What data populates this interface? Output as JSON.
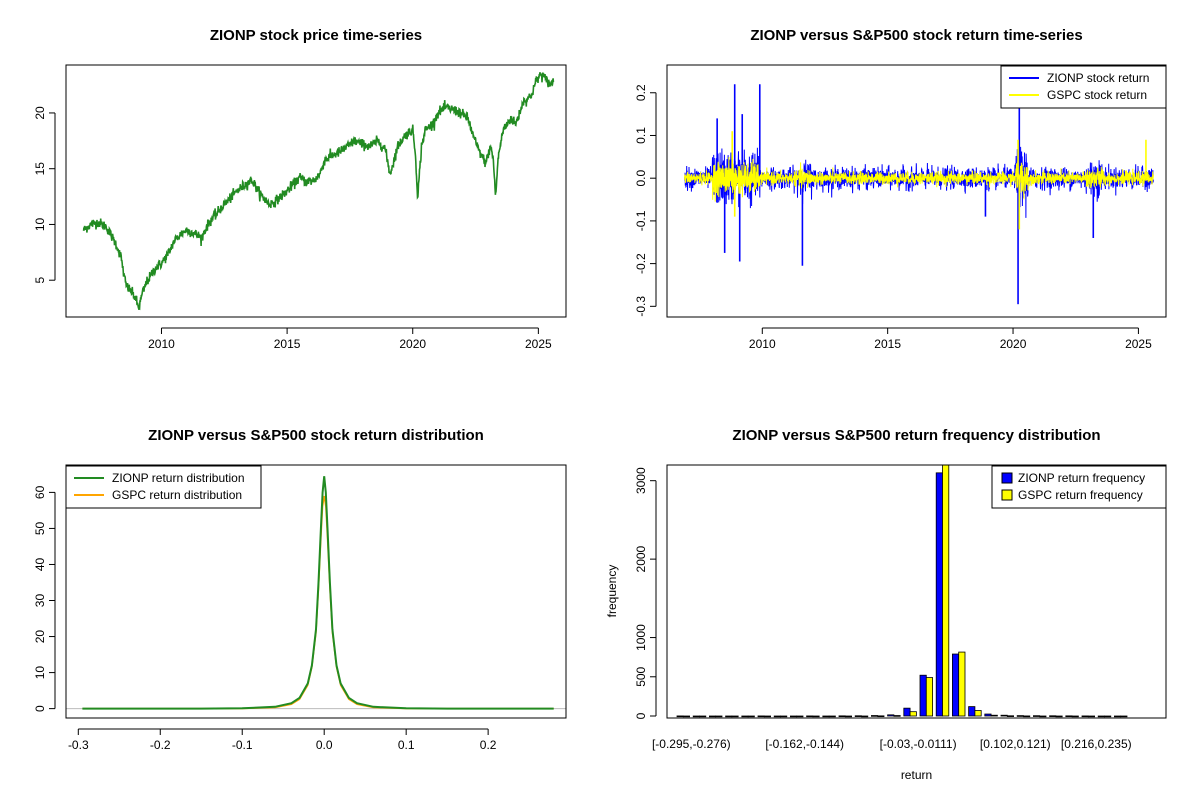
{
  "chart_data": [
    {
      "id": "price",
      "type": "line",
      "title": "ZIONP stock price time-series",
      "xlabel": "",
      "ylabel": "",
      "xlim": [
        2006.2,
        2026.1
      ],
      "ylim": [
        1.7,
        24.3
      ],
      "xticks": [
        2010,
        2015,
        2020,
        2025
      ],
      "yticks": [
        5,
        10,
        15,
        20
      ],
      "series": [
        {
          "color": "#228B22",
          "x": [
            2006.9,
            2007.2,
            2007.5,
            2007.8,
            2008.0,
            2008.2,
            2008.4,
            2008.5,
            2008.6,
            2008.8,
            2009.0,
            2009.1,
            2009.2,
            2009.4,
            2009.6,
            2009.8,
            2010.0,
            2010.3,
            2010.5,
            2010.8,
            2011.0,
            2011.3,
            2011.6,
            2011.8,
            2012.0,
            2012.2,
            2012.5,
            2012.8,
            2013.0,
            2013.3,
            2013.6,
            2013.8,
            2014.0,
            2014.3,
            2014.6,
            2014.9,
            2015.2,
            2015.5,
            2015.8,
            2016.1,
            2016.3,
            2016.5,
            2016.8,
            2017.1,
            2017.4,
            2017.7,
            2018.0,
            2018.3,
            2018.6,
            2018.9,
            2019.1,
            2019.4,
            2019.7,
            2020.0,
            2020.1,
            2020.2,
            2020.25,
            2020.35,
            2020.5,
            2020.8,
            2021.0,
            2021.3,
            2021.6,
            2021.9,
            2022.2,
            2022.4,
            2022.6,
            2022.9,
            2023.1,
            2023.2,
            2023.3,
            2023.4,
            2023.6,
            2023.9,
            2024.1,
            2024.4,
            2024.7,
            2024.9,
            2025.1,
            2025.3,
            2025.5,
            2025.6
          ],
          "y": [
            9.5,
            10.0,
            10.2,
            9.8,
            9.0,
            8.2,
            7.0,
            5.5,
            4.5,
            4.0,
            3.2,
            2.5,
            3.5,
            4.8,
            5.5,
            6.2,
            6.5,
            7.5,
            8.5,
            9.2,
            9.5,
            9.2,
            8.8,
            9.8,
            10.5,
            11.0,
            11.8,
            12.5,
            13.0,
            13.5,
            14.0,
            13.2,
            12.5,
            11.8,
            12.2,
            12.8,
            13.5,
            14.2,
            13.8,
            14.0,
            14.5,
            15.8,
            16.2,
            16.5,
            17.0,
            17.5,
            17.2,
            17.0,
            17.5,
            16.8,
            14.5,
            17.0,
            18.0,
            18.5,
            16.5,
            12.5,
            14.0,
            17.0,
            18.5,
            19.0,
            20.0,
            20.5,
            20.3,
            20.0,
            19.5,
            18.0,
            16.8,
            15.5,
            17.0,
            16.0,
            12.5,
            16.0,
            18.5,
            19.5,
            19.0,
            21.0,
            21.5,
            22.8,
            23.5,
            23.0,
            22.5,
            23.0
          ]
        }
      ]
    },
    {
      "id": "returns",
      "type": "line",
      "title": "ZIONP versus S&P500 stock return time-series",
      "xlabel": "",
      "ylabel": "",
      "xlim": [
        2006.2,
        2026.1
      ],
      "ylim": [
        -0.325,
        0.265
      ],
      "xticks": [
        2010,
        2015,
        2020,
        2025
      ],
      "yticks": [
        -0.3,
        -0.2,
        -0.1,
        0.0,
        0.1,
        0.2
      ],
      "ytick_labels": [
        "-0.3",
        "-0.2",
        "-0.1",
        "0.0",
        "0.1",
        "0.2"
      ],
      "x_range": [
        2006.9,
        2025.6
      ],
      "legend": {
        "placement": "top-right",
        "entries": [
          "ZIONP stock return",
          "GSPC stock return"
        ]
      },
      "series": [
        {
          "name": "ZIONP stock return",
          "color": "#0000FF",
          "spikes_x": [
            2008.2,
            2008.5,
            2008.9,
            2009.1,
            2009.2,
            2009.9,
            2011.6,
            2018.9,
            2020.2,
            2020.25,
            2023.2
          ],
          "spikes_y": [
            0.14,
            -0.175,
            0.22,
            -0.195,
            0.15,
            0.22,
            -0.205,
            -0.09,
            -0.295,
            0.19,
            -0.14
          ]
        },
        {
          "name": "GSPC stock return",
          "color": "#FFFF00",
          "spikes_x": [
            2008.8,
            2008.9,
            2020.2,
            2020.25,
            2025.3
          ],
          "spikes_y": [
            0.11,
            -0.09,
            0.09,
            -0.12,
            0.09
          ]
        }
      ]
    },
    {
      "id": "density",
      "type": "line",
      "title": "ZIONP versus S&P500 stock return distribution",
      "xlabel": "",
      "ylabel": "",
      "xlim": [
        -0.3,
        0.3
      ],
      "ylim": [
        -2.6,
        67.6
      ],
      "xticks": [
        -0.3,
        -0.2,
        -0.1,
        0.0,
        0.1,
        0.2
      ],
      "xtick_labels": [
        "-0.3",
        "-0.2",
        "-0.1",
        "0.0",
        "0.1",
        "0.2"
      ],
      "yticks": [
        0,
        10,
        20,
        30,
        40,
        50,
        60
      ],
      "legend": {
        "placement": "top-left",
        "entries": [
          "ZIONP return distribution",
          "GSPC return distribution"
        ]
      },
      "series": [
        {
          "name": "ZIONP return distribution",
          "color": "#228B22",
          "x": [
            -0.295,
            -0.15,
            -0.1,
            -0.06,
            -0.04,
            -0.03,
            -0.02,
            -0.015,
            -0.01,
            -0.007,
            -0.004,
            -0.002,
            0.0,
            0.002,
            0.004,
            0.007,
            0.01,
            0.015,
            0.02,
            0.03,
            0.04,
            0.06,
            0.1,
            0.15,
            0.28
          ],
          "y": [
            0,
            0,
            0.1,
            0.5,
            1.5,
            3,
            7,
            12,
            22,
            35,
            50,
            60,
            64.5,
            60,
            50,
            35,
            22,
            12,
            7,
            3,
            1.5,
            0.5,
            0.1,
            0,
            0
          ]
        },
        {
          "name": "GSPC return distribution",
          "color": "#FFA500",
          "x": [
            -0.295,
            -0.1,
            -0.06,
            -0.04,
            -0.03,
            -0.02,
            -0.015,
            -0.01,
            -0.007,
            -0.004,
            -0.002,
            0.0,
            0.002,
            0.004,
            0.007,
            0.01,
            0.015,
            0.02,
            0.03,
            0.04,
            0.06,
            0.1,
            0.28
          ],
          "y": [
            0,
            0,
            0.3,
            1.2,
            2.6,
            6.5,
            11.5,
            21,
            33,
            47,
            56,
            59,
            56,
            47,
            33,
            21,
            11.5,
            6.5,
            2.6,
            1.2,
            0.3,
            0,
            0
          ]
        }
      ]
    },
    {
      "id": "frequency",
      "type": "bar",
      "title": "ZIONP versus S&P500 return frequency distribution",
      "xlabel": "return",
      "ylabel": "frequency",
      "ylim": [
        0,
        3200
      ],
      "yticks": [
        0,
        500,
        1000,
        2000,
        3000
      ],
      "bin_count": 28,
      "category_labels_shown": {
        "0": "[-0.295,-0.276)",
        "7": "[-0.162,-0.144)",
        "14": "[-0.03,-0.0111)",
        "20": "[0.102,0.121)",
        "25": "[0.216,0.235)"
      },
      "legend": {
        "placement": "top-right",
        "entries": [
          "ZIONP return frequency",
          "GSPC return frequency"
        ]
      },
      "series": [
        {
          "name": "ZIONP return frequency",
          "color": "#0000FF",
          "values": [
            1,
            0,
            0,
            0,
            0,
            1,
            0,
            0,
            1,
            0,
            2,
            3,
            6,
            15,
            100,
            520,
            3100,
            790,
            120,
            25,
            10,
            5,
            4,
            3,
            2,
            1,
            0,
            0
          ]
        },
        {
          "name": "GSPC return frequency",
          "color": "#FFFF00",
          "values": [
            0,
            0,
            0,
            0,
            0,
            0,
            0,
            0,
            0,
            0,
            0,
            0,
            2,
            6,
            55,
            490,
            3200,
            815,
            70,
            10,
            3,
            1,
            0,
            0,
            0,
            0,
            0,
            0
          ]
        }
      ]
    }
  ]
}
